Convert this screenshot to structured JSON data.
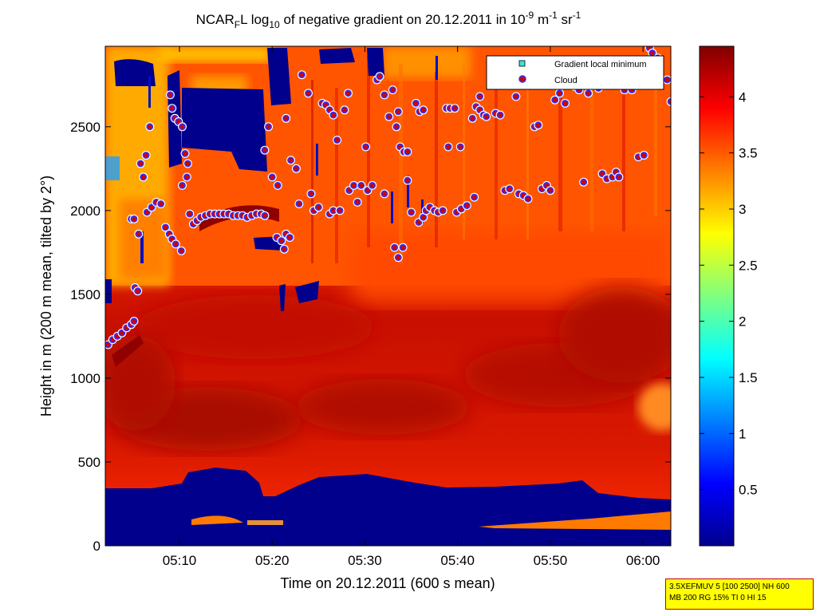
{
  "chart_data": {
    "type": "heatmap",
    "title": {
      "prefix": "NCAR",
      "prefix_sub": "F",
      "mid": "L log",
      "log_sub": "10",
      "text": " of negative gradient on 20.12.2011 in 10",
      "exp1": "-9",
      "unit1": " m",
      "exp2": "-1",
      "unit2": " sr",
      "exp3": "-1"
    },
    "xlabel": "Time on 20.12.2011 (600 s mean)",
    "ylabel": "Height in m (200 m mean, tilted by 2°)",
    "xlim_min": [
      302,
      363
    ],
    "ylim": [
      0,
      2980
    ],
    "x_ticks": [
      {
        "value": 310,
        "label": "05:10"
      },
      {
        "value": 320,
        "label": "05:20"
      },
      {
        "value": 330,
        "label": "05:30"
      },
      {
        "value": 340,
        "label": "05:40"
      },
      {
        "value": 350,
        "label": "05:50"
      },
      {
        "value": 360,
        "label": "06:00"
      }
    ],
    "y_ticks": [
      0,
      500,
      1000,
      1500,
      2000,
      2500
    ],
    "colorbar": {
      "range": [
        0,
        4.45
      ],
      "ticks": [
        0.5,
        1,
        1.5,
        2,
        2.5,
        3,
        3.5,
        4
      ],
      "tick_labels": [
        "0.5",
        "1",
        "1.5",
        "2",
        "2.5",
        "3",
        "3.5",
        "4"
      ],
      "colormap": "jet"
    },
    "legend": {
      "placement": "top-right",
      "entries": [
        {
          "label": "Gradient local minimum",
          "marker": "square",
          "color": "#40e0e0"
        },
        {
          "label": "Cloud",
          "marker": "circle",
          "color": "#d00000"
        }
      ]
    },
    "cloud_points": [
      [
        302.3,
        1200
      ],
      [
        302.8,
        1230
      ],
      [
        303.3,
        1250
      ],
      [
        303.8,
        1270
      ],
      [
        304.3,
        1300
      ],
      [
        304.8,
        1320
      ],
      [
        305.1,
        1340
      ],
      [
        304.8,
        1950
      ],
      [
        305.1,
        1950
      ],
      [
        305.6,
        1860
      ],
      [
        305.2,
        1540
      ],
      [
        305.5,
        1520
      ],
      [
        305.8,
        2280
      ],
      [
        306.1,
        2200
      ],
      [
        306.4,
        2330
      ],
      [
        306.8,
        2500
      ],
      [
        306.5,
        1990
      ],
      [
        307.0,
        2020
      ],
      [
        307.5,
        2050
      ],
      [
        308.0,
        2040
      ],
      [
        308.5,
        1900
      ],
      [
        308.9,
        1860
      ],
      [
        309.2,
        1830
      ],
      [
        309.6,
        1800
      ],
      [
        310.2,
        1760
      ],
      [
        309.0,
        2690
      ],
      [
        309.2,
        2610
      ],
      [
        309.5,
        2550
      ],
      [
        309.9,
        2530
      ],
      [
        310.3,
        2500
      ],
      [
        310.6,
        2340
      ],
      [
        310.9,
        2280
      ],
      [
        310.3,
        2150
      ],
      [
        310.8,
        2200
      ],
      [
        311.1,
        1980
      ],
      [
        311.5,
        1920
      ],
      [
        311.9,
        1940
      ],
      [
        312.3,
        1960
      ],
      [
        312.8,
        1970
      ],
      [
        313.3,
        1980
      ],
      [
        313.8,
        1980
      ],
      [
        314.3,
        1980
      ],
      [
        314.8,
        1980
      ],
      [
        315.3,
        1980
      ],
      [
        315.8,
        1970
      ],
      [
        316.3,
        1970
      ],
      [
        316.8,
        1970
      ],
      [
        317.3,
        1960
      ],
      [
        317.8,
        1970
      ],
      [
        318.3,
        1980
      ],
      [
        318.8,
        1980
      ],
      [
        319.2,
        1970
      ],
      [
        319.2,
        2360
      ],
      [
        319.6,
        2500
      ],
      [
        320.0,
        2200
      ],
      [
        320.6,
        2150
      ],
      [
        320.5,
        1840
      ],
      [
        321.0,
        1820
      ],
      [
        321.5,
        1860
      ],
      [
        321.9,
        1840
      ],
      [
        321.3,
        1770
      ],
      [
        321.5,
        2550
      ],
      [
        322.0,
        2300
      ],
      [
        322.6,
        2250
      ],
      [
        322.9,
        2040
      ],
      [
        323.2,
        2810
      ],
      [
        323.9,
        2700
      ],
      [
        324.2,
        2100
      ],
      [
        324.5,
        2000
      ],
      [
        325.0,
        2020
      ],
      [
        325.4,
        2640
      ],
      [
        325.8,
        2630
      ],
      [
        326.2,
        2600
      ],
      [
        326.6,
        2570
      ],
      [
        326.2,
        1980
      ],
      [
        326.6,
        2000
      ],
      [
        327.0,
        2420
      ],
      [
        327.3,
        2000
      ],
      [
        327.8,
        2600
      ],
      [
        328.2,
        2700
      ],
      [
        328.3,
        2120
      ],
      [
        328.8,
        2150
      ],
      [
        329.2,
        2050
      ],
      [
        329.6,
        2150
      ],
      [
        330.1,
        2380
      ],
      [
        330.3,
        2120
      ],
      [
        330.8,
        2150
      ],
      [
        331.3,
        2780
      ],
      [
        331.6,
        2800
      ],
      [
        332.1,
        2690
      ],
      [
        332.6,
        2560
      ],
      [
        332.1,
        2100
      ],
      [
        333.0,
        2720
      ],
      [
        333.4,
        2500
      ],
      [
        333.6,
        2590
      ],
      [
        333.2,
        1780
      ],
      [
        333.6,
        1720
      ],
      [
        334.1,
        1780
      ],
      [
        333.8,
        2380
      ],
      [
        334.2,
        2350
      ],
      [
        334.6,
        2180
      ],
      [
        334.6,
        2350
      ],
      [
        335.0,
        1990
      ],
      [
        335.5,
        2640
      ],
      [
        335.9,
        2590
      ],
      [
        336.3,
        2600
      ],
      [
        335.8,
        1930
      ],
      [
        336.3,
        1960
      ],
      [
        336.6,
        2000
      ],
      [
        337.0,
        2020
      ],
      [
        337.5,
        2000
      ],
      [
        337.9,
        1990
      ],
      [
        338.4,
        2000
      ],
      [
        338.8,
        2610
      ],
      [
        339.2,
        2610
      ],
      [
        339.7,
        2610
      ],
      [
        340.3,
        2380
      ],
      [
        339.0,
        2380
      ],
      [
        339.9,
        1990
      ],
      [
        340.4,
        2010
      ],
      [
        341.0,
        2030
      ],
      [
        341.6,
        2550
      ],
      [
        342.0,
        2620
      ],
      [
        342.4,
        2600
      ],
      [
        342.8,
        2570
      ],
      [
        341.8,
        2080
      ],
      [
        342.4,
        2680
      ],
      [
        343.1,
        2560
      ],
      [
        344.1,
        2580
      ],
      [
        344.6,
        2570
      ],
      [
        345.1,
        2120
      ],
      [
        345.6,
        2130
      ],
      [
        346.3,
        2680
      ],
      [
        346.6,
        2100
      ],
      [
        347.1,
        2090
      ],
      [
        347.6,
        2070
      ],
      [
        348.3,
        2500
      ],
      [
        348.7,
        2510
      ],
      [
        349.1,
        2130
      ],
      [
        349.6,
        2150
      ],
      [
        350.0,
        2120
      ],
      [
        350.5,
        2660
      ],
      [
        351.0,
        2700
      ],
      [
        351.6,
        2640
      ],
      [
        352.1,
        2750
      ],
      [
        352.6,
        2740
      ],
      [
        353.1,
        2720
      ],
      [
        353.6,
        2750
      ],
      [
        354.1,
        2700
      ],
      [
        354.6,
        2750
      ],
      [
        355.2,
        2730
      ],
      [
        353.6,
        2170
      ],
      [
        355.6,
        2220
      ],
      [
        356.1,
        2190
      ],
      [
        356.7,
        2200
      ],
      [
        357.1,
        2230
      ],
      [
        357.4,
        2200
      ],
      [
        358.0,
        2720
      ],
      [
        358.3,
        2750
      ],
      [
        358.8,
        2720
      ],
      [
        359.5,
        2320
      ],
      [
        360.1,
        2330
      ],
      [
        360.7,
        2970
      ],
      [
        361.0,
        2940
      ],
      [
        361.6,
        2910
      ],
      [
        362.6,
        2780
      ],
      [
        363.0,
        2650
      ]
    ]
  },
  "info_box": {
    "line1": "3.5XEFMUV 5 [100 2500] NH 600",
    "line2": "MB 200 RG 15% TI 0 HI 15"
  }
}
